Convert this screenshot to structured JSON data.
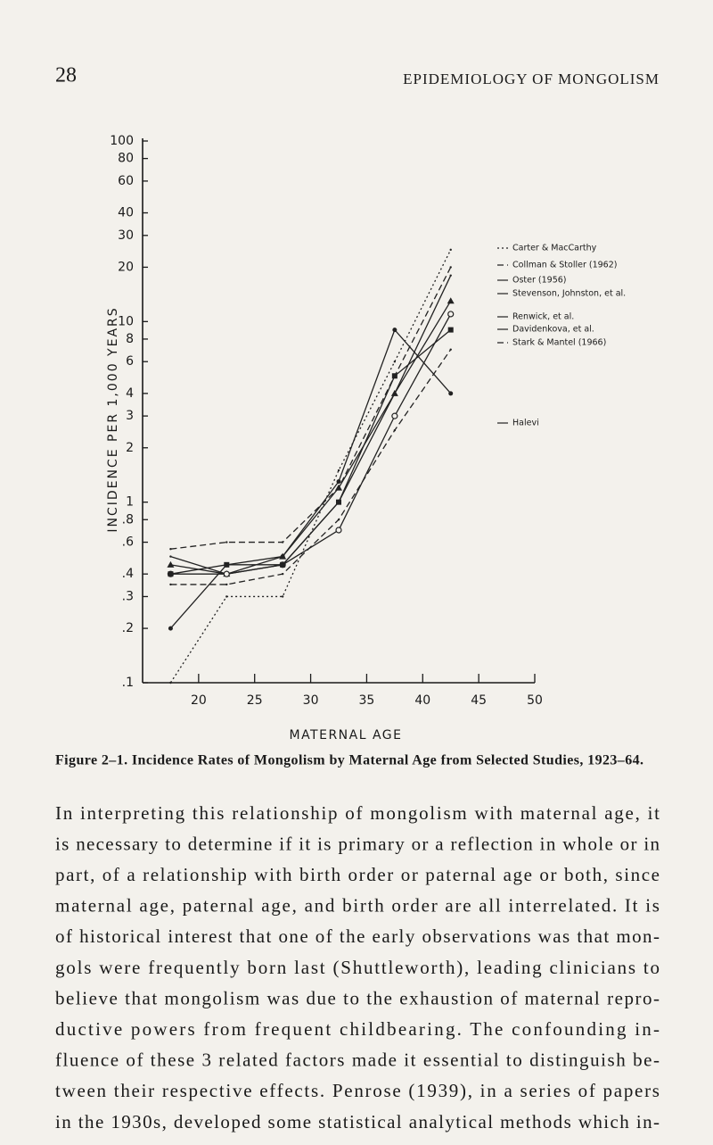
{
  "header": {
    "page_number": "28",
    "running_title": "EPIDEMIOLOGY OF MONGOLISM"
  },
  "chart_data": {
    "type": "line",
    "x_label": "MATERNAL AGE",
    "y_label": "INCIDENCE PER 1,000 YEARS",
    "x": [
      17.5,
      22.5,
      27.5,
      32.5,
      37.5,
      42.5
    ],
    "xlim": [
      15,
      50
    ],
    "xticks": [
      20,
      25,
      30,
      35,
      40,
      45,
      50
    ],
    "ylim": [
      0.1,
      100
    ],
    "ylog": true,
    "yticks": [
      100,
      80,
      60,
      40,
      30,
      20,
      10,
      8,
      6,
      4,
      3,
      2,
      1,
      {
        "value": 0.8,
        "label": ".8"
      },
      {
        "value": 0.6,
        "label": ".6"
      },
      {
        "value": 0.4,
        "label": ".4"
      },
      {
        "value": 0.3,
        "label": ".3"
      },
      {
        "value": 0.2,
        "label": ".2"
      },
      {
        "value": 0.1,
        "label": ".1"
      }
    ],
    "grid": false,
    "series": [
      {
        "name": "Carter & MacCarthy",
        "color": "#222222",
        "dash": "dotted",
        "marker": "none",
        "values": [
          0.1,
          0.3,
          0.3,
          1.5,
          6,
          25
        ]
      },
      {
        "name": "Collman & Stoller (1962)",
        "color": "#222222",
        "dash": "dashed",
        "marker": "none",
        "values": [
          0.55,
          0.6,
          0.6,
          1.2,
          5,
          20
        ]
      },
      {
        "name": "Oster (1956)",
        "color": "#222222",
        "dash": "solid",
        "marker": "none",
        "values": [
          0.5,
          0.4,
          0.45,
          1,
          4,
          18
        ]
      },
      {
        "name": "Stevenson, Johnston, et al.",
        "color": "#222222",
        "dash": "solid",
        "marker": "triangle",
        "values": [
          0.45,
          0.4,
          0.5,
          1.2,
          4,
          13
        ]
      },
      {
        "name": "Renwick, et al.",
        "color": "#222222",
        "dash": "solid",
        "marker": "circle",
        "values": [
          0.4,
          0.4,
          0.45,
          0.7,
          3,
          11
        ]
      },
      {
        "name": "Davidenkova, et al.",
        "color": "#222222",
        "dash": "solid",
        "marker": "square",
        "values": [
          0.4,
          0.45,
          0.45,
          1,
          5,
          9
        ]
      },
      {
        "name": "Stark & Mantel (1966)",
        "color": "#222222",
        "dash": "dashed",
        "marker": "none",
        "values": [
          0.35,
          0.35,
          0.4,
          0.8,
          2.5,
          7
        ]
      },
      {
        "name": "Halevi",
        "color": "#222222",
        "dash": "solid",
        "marker": "dot",
        "values": [
          0.2,
          0.45,
          0.5,
          1.3,
          9,
          4
        ]
      }
    ]
  },
  "caption": "Figure 2–1. Incidence Rates of Mongolism by Maternal Age from Selected Studies, 1923–64.",
  "body": {
    "lines": [
      "In interpreting this relationship of mongolism with maternal age, it",
      "is necessary to determine if it is primary or a reflection in whole or in",
      "part, of a relationship with birth order or paternal age or both, since",
      "maternal age, paternal age, and birth order are all interrelated. It is",
      "of historical interest that one of the early observations was that mon-",
      "gols were frequently born last (Shuttleworth), leading clinicians to",
      "believe that mongolism was due to the exhaustion of maternal repro-",
      "ductive powers from frequent childbearing. The confounding in-",
      "fluence of these 3 related factors made it essential to distinguish be-",
      "tween their respective effects. Penrose (1939), in a series of papers",
      "in the 1930s, developed some statistical analytical methods which in-"
    ]
  }
}
